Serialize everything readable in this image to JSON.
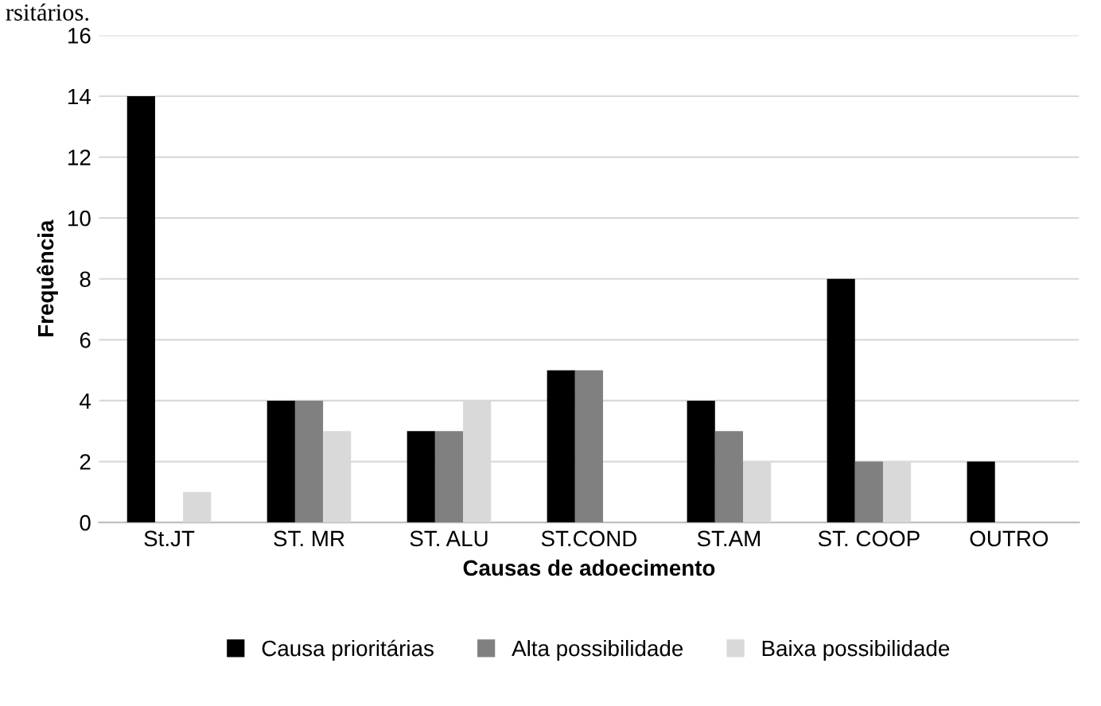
{
  "chart_data": {
    "type": "bar",
    "xlabel": "Causas de adoecimento",
    "ylabel": "Frequência",
    "annotations": [
      "rsitários."
    ],
    "categories": [
      "St.JT",
      "ST. MR",
      "ST. ALU",
      "ST.COND",
      "ST.AM",
      "ST. COOP",
      "OUTRO"
    ],
    "series": [
      {
        "name": "Causa prioritárias",
        "color": "#000000",
        "values": [
          14,
          4,
          3,
          5,
          4,
          8,
          2
        ]
      },
      {
        "name": "Alta possibilidade",
        "color": "#808080",
        "values": [
          0,
          4,
          3,
          5,
          3,
          2,
          0
        ]
      },
      {
        "name": "Baixa possibilidade",
        "color": "#d9d9d9",
        "values": [
          1,
          3,
          4,
          0,
          2,
          2,
          0
        ]
      }
    ],
    "ylim": [
      0,
      16
    ],
    "yticks": [
      0,
      2,
      4,
      6,
      8,
      10,
      12,
      14,
      16
    ],
    "grid": "y",
    "legend": "bottom"
  }
}
